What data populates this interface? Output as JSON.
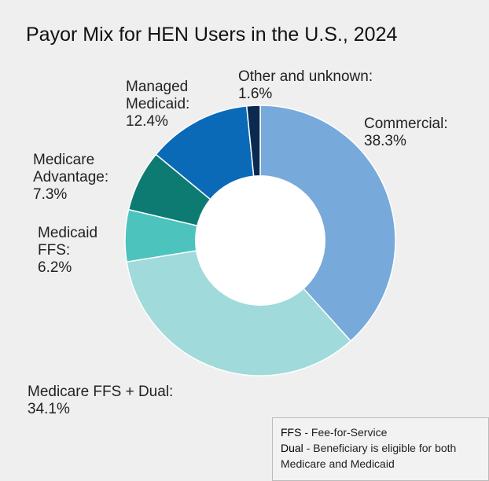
{
  "chart_data": {
    "type": "donut",
    "title": "Payor Mix for HEN Users in the U.S., 2024",
    "categories": [
      "Commercial:",
      "Medicare FFS + Dual:",
      "Medicaid FFS:",
      "Medicare Advantage:",
      "Managed Medicaid:",
      "Other and unknown:"
    ],
    "values": [
      38.3,
      34.1,
      6.2,
      7.3,
      12.4,
      1.6
    ],
    "value_labels": [
      "38.3%",
      "34.1%",
      "6.2%",
      "7.3%",
      "12.4%",
      "1.6%"
    ],
    "colors": [
      "#77a9da",
      "#a0dada",
      "#4dc3be",
      "#0e7b72",
      "#0a6ab8",
      "#0b2a50"
    ],
    "notes": [
      {
        "term": "FFS",
        "text": "- Fee-for-Service"
      },
      {
        "term": "Dual",
        "text": "- Beneficiary is eligible for both Medicare and Medicaid"
      }
    ]
  }
}
